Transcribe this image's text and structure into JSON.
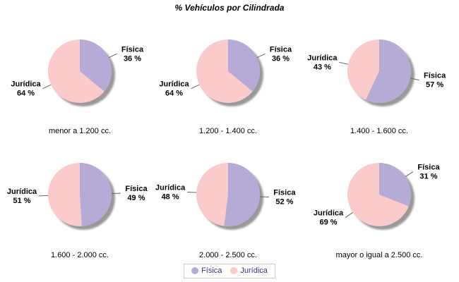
{
  "title": "% Vehículos por Cilindrada",
  "chart_data": {
    "type": "pie",
    "title": "% Vehículos por Cilindrada",
    "layout": "2 rows x 3 columns of pies, shared legend at bottom",
    "series": [
      "Física",
      "Jurídica"
    ],
    "value_format": "{v} %",
    "pies": [
      {
        "category": "menor a 1.200 cc.",
        "values": [
          36,
          64
        ]
      },
      {
        "category": "1.200 - 1.400 cc.",
        "values": [
          36,
          64
        ]
      },
      {
        "category": "1.400 - 1.600 cc.",
        "values": [
          57,
          43
        ]
      },
      {
        "category": "1.600 - 2.000 cc.",
        "values": [
          49,
          51
        ]
      },
      {
        "category": "2.000 - 2.500 cc.",
        "values": [
          52,
          48
        ]
      },
      {
        "category": "mayor o igual a 2.500 cc.",
        "values": [
          31,
          69
        ]
      }
    ],
    "legend": [
      "Física",
      "Jurídica"
    ],
    "legend_position": "bottom-center"
  },
  "colors": {
    "fisica": "#b6abd6",
    "juridica": "#fbcaca",
    "shadow": "#999999",
    "leader_line": "#666666",
    "label_text": "#000000",
    "legend_text": "#3f2d8e",
    "legend_border": "#c8c8c8",
    "background": "#ffffff"
  }
}
